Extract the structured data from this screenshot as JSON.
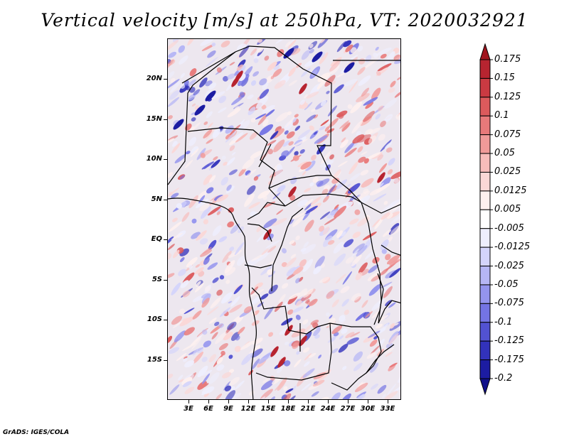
{
  "title": "Vertical velocity [m/s] at 250hPa, VT: 2020032921",
  "credit": "GrADS: IGES/COLA",
  "map": {
    "lat_labels": [
      "20N",
      "15N",
      "10N",
      "5N",
      "EQ",
      "5S",
      "10S",
      "15S"
    ],
    "lon_labels": [
      "3E",
      "6E",
      "9E",
      "12E",
      "15E",
      "18E",
      "21E",
      "24E",
      "27E",
      "30E",
      "33E"
    ]
  },
  "colorbar": {
    "levels": [
      "0.175",
      "0.15",
      "0.125",
      "0.1",
      "0.075",
      "0.05",
      "0.025",
      "0.0125",
      "0.005",
      "-0.005",
      "-0.0125",
      "-0.025",
      "-0.05",
      "-0.075",
      "-0.1",
      "-0.125",
      "-0.175",
      "-0.2"
    ],
    "colors": [
      "#a0141e",
      "#b72430",
      "#ca3a42",
      "#dc5a5c",
      "#e8797a",
      "#f09a99",
      "#f7bcbb",
      "#fbd7d6",
      "#fdf0ef",
      "#ffffff",
      "#eeeefd",
      "#d4d4fb",
      "#b6b6f5",
      "#9494ee",
      "#7474e4",
      "#5252d2",
      "#3232bb",
      "#1c1ca2",
      "#10108a"
    ]
  }
}
